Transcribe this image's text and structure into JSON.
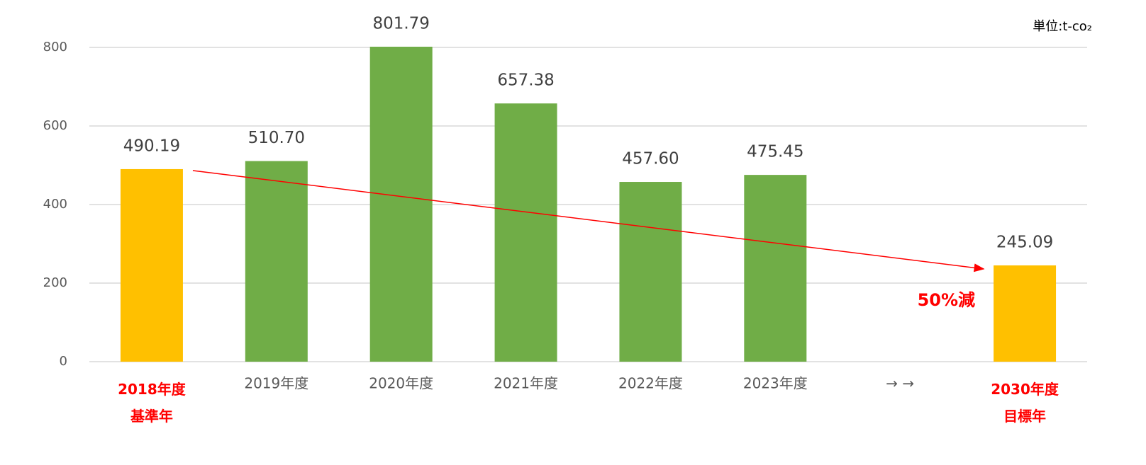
{
  "chart_data": {
    "type": "bar",
    "unit": "単位:t-co₂",
    "annotation": "50%減",
    "categories": [
      "2018年度\n基準年",
      "2019年度",
      "2020年度",
      "2021年度",
      "2022年度",
      "2023年度",
      "→ →",
      "2030年度\n目標年"
    ],
    "label_colors": [
      "#ff0000",
      null,
      null,
      null,
      null,
      null,
      null,
      "#ff0000"
    ],
    "values": [
      490.19,
      510.7,
      801.79,
      657.38,
      457.6,
      475.45,
      null,
      245.09
    ],
    "value_labels": [
      "490.19",
      "510.70",
      "801.79",
      "657.38",
      "457.60",
      "475.45",
      null,
      "245.09"
    ],
    "colors": [
      "#ffc000",
      "#70ad47",
      "#70ad47",
      "#70ad47",
      "#70ad47",
      "#70ad47",
      null,
      "#ffc000"
    ],
    "arrow_color": "#ff0000",
    "ylim": [
      0,
      800
    ],
    "yticks": [
      0,
      200,
      400,
      600,
      800
    ],
    "grid": true
  }
}
